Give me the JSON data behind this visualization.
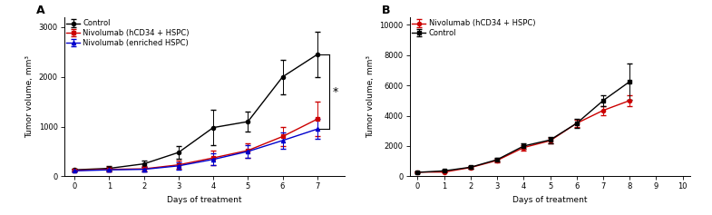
{
  "panel_A": {
    "label": "A",
    "xlabel": "Days of treatment",
    "ylabel": "Tumor volume, mm³",
    "xlim": [
      -0.3,
      7.8
    ],
    "ylim": [
      0,
      3200
    ],
    "yticks": [
      0,
      1000,
      2000,
      3000
    ],
    "xticks": [
      0,
      1,
      2,
      3,
      4,
      5,
      6,
      7
    ],
    "series": [
      {
        "label": "Control",
        "color": "#000000",
        "marker": "o",
        "x": [
          0,
          1,
          2,
          3,
          4,
          5,
          6,
          7
        ],
        "y": [
          130,
          160,
          250,
          480,
          980,
          1100,
          2000,
          2450
        ],
        "yerr": [
          30,
          50,
          70,
          130,
          350,
          200,
          350,
          450
        ]
      },
      {
        "label": "Nivolumab (hCD34 + HSPC)",
        "color": "#cc0000",
        "marker": "s",
        "x": [
          0,
          1,
          2,
          3,
          4,
          5,
          6,
          7
        ],
        "y": [
          120,
          140,
          150,
          230,
          370,
          520,
          800,
          1150
        ],
        "yerr": [
          25,
          40,
          50,
          80,
          150,
          150,
          200,
          350
        ]
      },
      {
        "label": "Nivolumab (enriched HSPC)",
        "color": "#0000cc",
        "marker": "^",
        "x": [
          0,
          1,
          2,
          3,
          4,
          5,
          6,
          7
        ],
        "y": [
          110,
          130,
          140,
          210,
          340,
          500,
          720,
          950
        ],
        "yerr": [
          20,
          35,
          40,
          70,
          120,
          120,
          170,
          200
        ]
      }
    ],
    "significance_y_low": 950,
    "significance_y_high": 2450,
    "significance_x": 7.35,
    "sig_star": "*"
  },
  "panel_B": {
    "label": "B",
    "xlabel": "Days of treatment",
    "ylabel": "Tumor volume, mm³",
    "xlim": [
      -0.3,
      10.3
    ],
    "ylim": [
      0,
      10500
    ],
    "yticks": [
      0,
      2000,
      4000,
      6000,
      8000,
      10000
    ],
    "xticks": [
      0,
      1,
      2,
      3,
      4,
      5,
      6,
      7,
      8,
      9,
      10
    ],
    "series": [
      {
        "label": "Nivolumab (hCD34 + HSPC)",
        "color": "#cc0000",
        "marker": "o",
        "x": [
          0,
          1,
          2,
          3,
          4,
          5,
          6,
          7,
          8
        ],
        "y": [
          280,
          280,
          580,
          1050,
          1900,
          2350,
          3500,
          4350,
          5000
        ],
        "yerr": [
          40,
          50,
          80,
          120,
          180,
          200,
          250,
          300,
          350
        ]
      },
      {
        "label": "Control",
        "color": "#000000",
        "marker": "s",
        "x": [
          0,
          1,
          2,
          3,
          4,
          5,
          6,
          7,
          8
        ],
        "y": [
          260,
          360,
          600,
          1100,
          2000,
          2400,
          3500,
          5000,
          6250
        ],
        "yerr": [
          40,
          60,
          90,
          130,
          200,
          220,
          280,
          350,
          1200
        ]
      }
    ]
  },
  "figure_bg": "#ffffff",
  "fontsize_label": 6.5,
  "fontsize_tick": 6,
  "fontsize_legend": 6,
  "fontsize_panel": 9,
  "linewidth": 1.0,
  "markersize": 3,
  "capsize": 2
}
